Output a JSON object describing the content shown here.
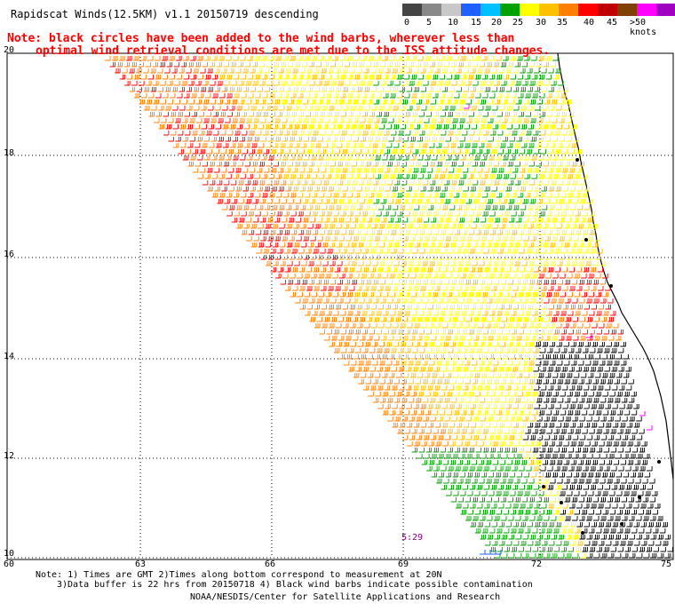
{
  "header": {
    "title": "Rapidscat Winds(12.5KM) v1.1 20150719 descending",
    "note_line1": "Note: black circles have been added to the wind barbs, wherever less than",
    "note_line2": "optimal wind retrieval conditions are met due to the ISS attitude changes."
  },
  "legend": {
    "colors": [
      "#444444",
      "#888888",
      "#c8c8c8",
      "#2060ff",
      "#00c0ff",
      "#00a000",
      "#ffff00",
      "#ffc000",
      "#ff8000",
      "#ff0000",
      "#c00000",
      "#804000",
      "#ff00ff",
      "#a000c0",
      "#5000a0"
    ],
    "labels": [
      "0",
      "5",
      "10",
      "15",
      "20",
      "25",
      "30",
      "35",
      "40",
      "45",
      ">50 knots"
    ]
  },
  "map": {
    "lat_labels": [
      "20",
      "18",
      "16",
      "14",
      "12",
      "10"
    ],
    "lon_labels": [
      "60",
      "63",
      "66",
      "69",
      "72",
      "75"
    ],
    "pass_time": "5:29",
    "wind_colors": {
      "green": "#00a000",
      "yellow": "#ffff00",
      "gold": "#ffc000",
      "orange": "#ff8000",
      "red": "#ff0000",
      "black": "#000000",
      "magenta": "#ff00ff",
      "blue": "#2060ff"
    }
  },
  "footer": {
    "line1": "Note: 1) Times are GMT 2)Times along bottom correspond to measurement at 20N",
    "line2": "3)Data buffer is 22 hrs from 20150718 4) Black wind barbs indicate possible contamination",
    "line3": "NOAA/NESDIS/Center for Satellite Applications and Research"
  }
}
